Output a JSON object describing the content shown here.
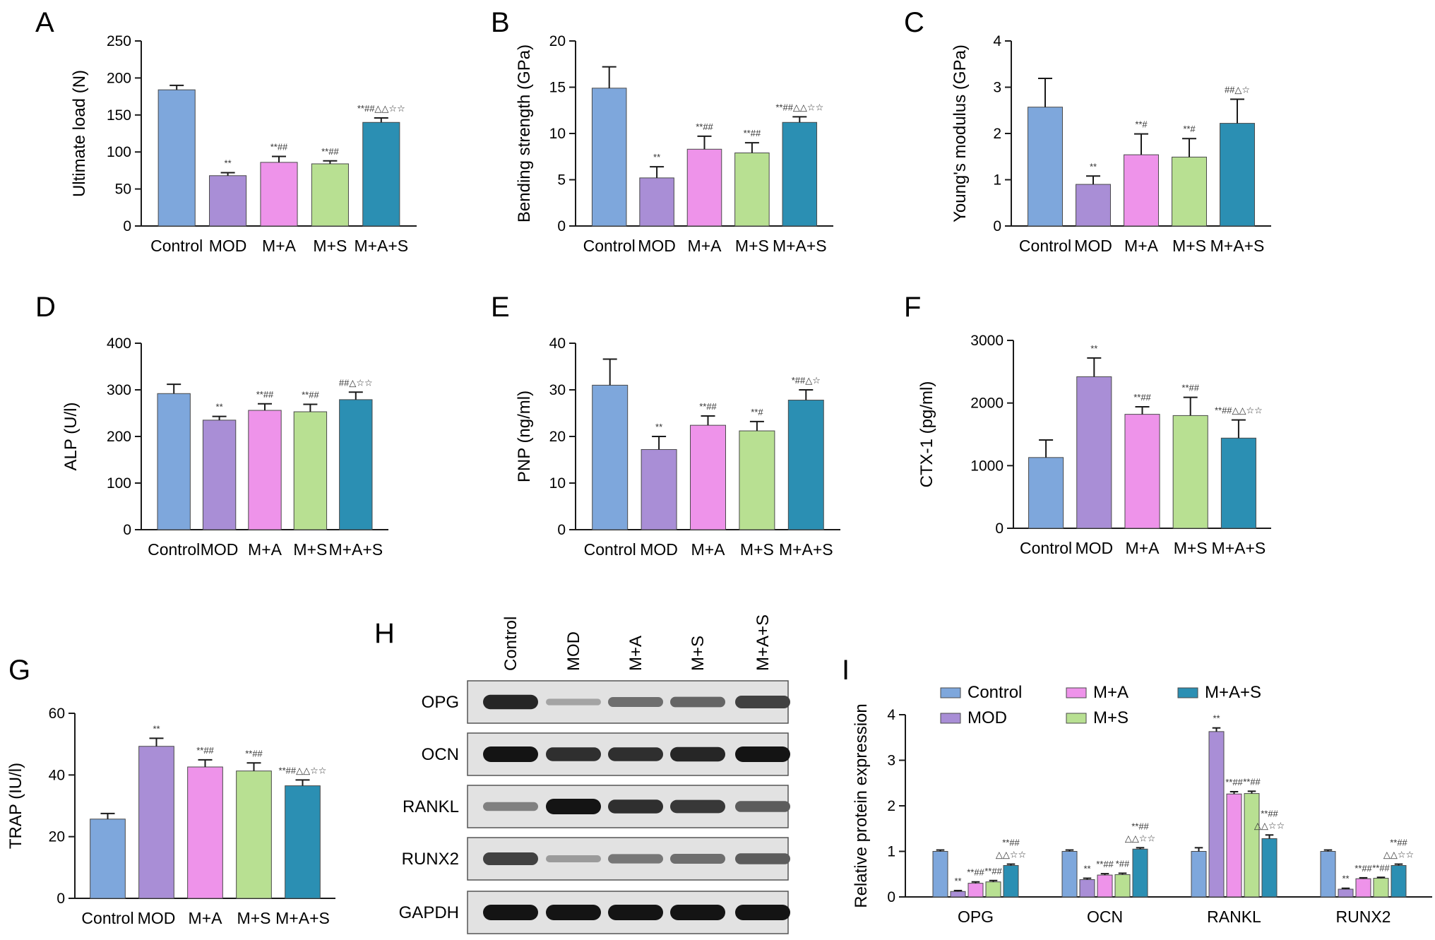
{
  "colors": {
    "Control": "#7ea7dc",
    "MOD": "#a98ed6",
    "M+A": "#ee93ea",
    "M+S": "#b8e092",
    "M+A+S": "#2b8fb3",
    "axis": "#1a1a1a"
  },
  "chart_data": [
    {
      "panel": "A",
      "type": "bar",
      "categories": [
        "Control",
        "MOD",
        "M+A",
        "M+S",
        "M+A+S"
      ],
      "values": [
        184,
        68,
        86,
        84,
        140
      ],
      "errors": [
        6,
        4,
        8,
        4,
        6
      ],
      "ylabel": "Ultimate load (N)",
      "ylim": [
        0,
        250
      ],
      "yticks": [
        "0",
        "50",
        "100",
        "150",
        "200",
        "250"
      ],
      "sig": [
        "",
        "**",
        "**##",
        "**##",
        "**##△△☆☆"
      ]
    },
    {
      "panel": "B",
      "type": "bar",
      "categories": [
        "Control",
        "MOD",
        "M+A",
        "M+S",
        "M+A+S"
      ],
      "values": [
        14.9,
        5.2,
        8.3,
        7.9,
        11.2
      ],
      "errors": [
        2.3,
        1.2,
        1.4,
        1.1,
        0.6
      ],
      "ylabel": "Bending strength (GPa)",
      "ylim": [
        0,
        20
      ],
      "yticks": [
        "0",
        "5",
        "10",
        "15",
        "20"
      ],
      "sig": [
        "",
        "**",
        "**##",
        "**##",
        "**##△△☆☆"
      ]
    },
    {
      "panel": "C",
      "type": "bar",
      "categories": [
        "Control",
        "MOD",
        "M+A",
        "M+S",
        "M+A+S"
      ],
      "values": [
        2.57,
        0.9,
        1.54,
        1.49,
        2.22
      ],
      "errors": [
        0.62,
        0.18,
        0.45,
        0.4,
        0.52
      ],
      "ylabel": "Young's modulus (GPa)",
      "ylim": [
        0,
        4
      ],
      "yticks": [
        "0",
        "1",
        "2",
        "3",
        "4"
      ],
      "sig": [
        "",
        "**",
        "**#",
        "**#",
        "##△☆"
      ]
    },
    {
      "panel": "D",
      "type": "bar",
      "categories": [
        "Control",
        "MOD",
        "M+A",
        "M+S",
        "M+A+S"
      ],
      "values": [
        292,
        235,
        256,
        253,
        279
      ],
      "errors": [
        20,
        8,
        14,
        16,
        16
      ],
      "ylabel": "ALP (U/l)",
      "ylim": [
        0,
        400
      ],
      "yticks": [
        "0",
        "100",
        "200",
        "300",
        "400"
      ],
      "sig": [
        "",
        "**",
        "**##",
        "**##",
        "##△☆☆"
      ]
    },
    {
      "panel": "E",
      "type": "bar",
      "categories": [
        "Control",
        "MOD",
        "M+A",
        "M+S",
        "M+A+S"
      ],
      "values": [
        31,
        17.2,
        22.4,
        21.2,
        27.8
      ],
      "errors": [
        5.6,
        2.8,
        2,
        2,
        2.2
      ],
      "ylabel": "PNP (ng/ml)",
      "ylim": [
        0,
        40
      ],
      "yticks": [
        "0",
        "10",
        "20",
        "30",
        "40"
      ],
      "sig": [
        "",
        "**",
        "**##",
        "**#",
        "*##△☆"
      ]
    },
    {
      "panel": "F",
      "type": "bar",
      "categories": [
        "Control",
        "MOD",
        "M+A",
        "M+S",
        "M+A+S"
      ],
      "values": [
        1130,
        2420,
        1820,
        1800,
        1440
      ],
      "errors": [
        280,
        300,
        120,
        290,
        290
      ],
      "ylabel": "CTX-1 (pg/ml)",
      "ylim": [
        0,
        3000
      ],
      "yticks": [
        "0",
        "1000",
        "2000",
        "3000"
      ],
      "sig": [
        "",
        "**",
        "**##",
        "**##",
        "**##△△☆☆"
      ]
    },
    {
      "panel": "G",
      "type": "bar",
      "categories": [
        "Control",
        "MOD",
        "M+A",
        "M+S",
        "M+A+S"
      ],
      "values": [
        25.7,
        49.3,
        42.6,
        41.3,
        36.5
      ],
      "errors": [
        1.8,
        2.6,
        2.3,
        2.6,
        1.9
      ],
      "ylabel": "TRAP (IU/l)",
      "ylim": [
        0,
        60
      ],
      "yticks": [
        "0",
        "20",
        "40",
        "60"
      ],
      "sig": [
        "",
        "**",
        "**##",
        "**##",
        "**##△△☆☆"
      ]
    },
    {
      "panel": "I",
      "type": "bar",
      "categories": [
        "OPG",
        "OCN",
        "RANKL",
        "RUNX2"
      ],
      "ylabel": "Relative protein expression",
      "ylim": [
        0,
        4
      ],
      "yticks": [
        "0",
        "1",
        "2",
        "3",
        "4"
      ],
      "legend_position": "top",
      "series": [
        {
          "name": "Control",
          "values": [
            1.0,
            1.0,
            1.0,
            1.0
          ],
          "errors": [
            0.03,
            0.03,
            0.08,
            0.03
          ]
        },
        {
          "name": "MOD",
          "values": [
            0.12,
            0.38,
            3.63,
            0.17
          ],
          "errors": [
            0.02,
            0.03,
            0.08,
            0.02
          ]
        },
        {
          "name": "M+A",
          "values": [
            0.3,
            0.48,
            2.26,
            0.4
          ],
          "errors": [
            0.03,
            0.03,
            0.05,
            0.02
          ]
        },
        {
          "name": "M+S",
          "values": [
            0.33,
            0.49,
            2.27,
            0.41
          ],
          "errors": [
            0.03,
            0.03,
            0.05,
            0.02
          ]
        },
        {
          "name": "M+A+S",
          "values": [
            0.69,
            1.05,
            1.28,
            0.69
          ],
          "errors": [
            0.03,
            0.03,
            0.08,
            0.03
          ]
        }
      ],
      "sig": [
        [
          "",
          "**",
          "**##",
          "**##",
          "**##|△△☆☆"
        ],
        [
          "",
          "**",
          "**##",
          "*##",
          "**##|△△☆☆"
        ],
        [
          "",
          "**",
          "**##",
          "**##",
          "**##|△△☆☆"
        ],
        [
          "",
          "**",
          "**##",
          "**##",
          "**##|△△☆☆"
        ]
      ]
    }
  ],
  "western_blot": {
    "panel": "H",
    "lanes": [
      "Control",
      "MOD",
      "M+A",
      "M+S",
      "M+A+S"
    ],
    "proteins": [
      {
        "name": "OPG",
        "intensity": [
          0.9,
          0.2,
          0.5,
          0.55,
          0.75
        ]
      },
      {
        "name": "OCN",
        "intensity": [
          1.0,
          0.85,
          0.85,
          0.9,
          1.0
        ]
      },
      {
        "name": "RANKL",
        "intensity": [
          0.4,
          1.0,
          0.85,
          0.8,
          0.6
        ]
      },
      {
        "name": "RUNX2",
        "intensity": [
          0.75,
          0.25,
          0.45,
          0.5,
          0.6
        ]
      },
      {
        "name": "GAPDH",
        "intensity": [
          1.0,
          1.0,
          1.0,
          1.0,
          1.0
        ]
      }
    ]
  }
}
